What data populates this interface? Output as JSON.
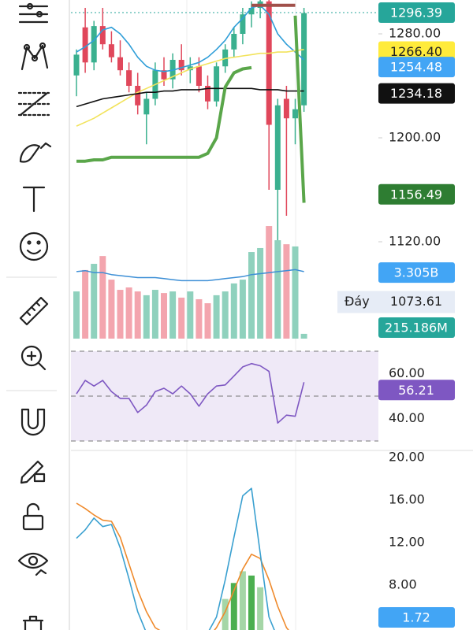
{
  "chart_data": [
    {
      "type": "candlestick",
      "ylim": [
        1045.45,
        1306.06
      ],
      "yticks": [
        {
          "value": 1280,
          "label": "1280.00"
        },
        {
          "value": 1200,
          "label": "1200.00"
        },
        {
          "value": 1120,
          "label": "1120.00"
        }
      ],
      "candles": [
        [
          1248,
          1268,
          1232,
          1264
        ],
        [
          1285,
          1300,
          1250,
          1258
        ],
        [
          1258,
          1290,
          1252,
          1286
        ],
        [
          1286,
          1300,
          1268,
          1272
        ],
        [
          1272,
          1282,
          1258,
          1262
        ],
        [
          1262,
          1275,
          1248,
          1252
        ],
        [
          1252,
          1258,
          1235,
          1240
        ],
        [
          1240,
          1250,
          1218,
          1225
        ],
        [
          1218,
          1235,
          1195,
          1230
        ],
        [
          1230,
          1258,
          1225,
          1252
        ],
        [
          1252,
          1262,
          1240,
          1245
        ],
        [
          1245,
          1265,
          1238,
          1260
        ],
        [
          1260,
          1272,
          1248,
          1252
        ],
        [
          1252,
          1262,
          1242,
          1255
        ],
        [
          1255,
          1262,
          1235,
          1240
        ],
        [
          1240,
          1248,
          1222,
          1228
        ],
        [
          1228,
          1258,
          1224,
          1255
        ],
        [
          1255,
          1272,
          1250,
          1268
        ],
        [
          1268,
          1285,
          1262,
          1280
        ],
        [
          1280,
          1300,
          1272,
          1295
        ],
        [
          1295,
          1305,
          1285,
          1300
        ],
        [
          1300,
          1310,
          1292,
          1305
        ],
        [
          1305,
          1310,
          1160,
          1210
        ],
        [
          1160,
          1230,
          1075,
          1225
        ],
        [
          1230,
          1240,
          1140,
          1215
        ],
        [
          1215,
          1230,
          1195,
          1222
        ],
        [
          1225,
          1300,
          1220,
          1296
        ]
      ],
      "up_color": "#3ab08f",
      "down_color": "#e0475b",
      "series": [
        {
          "color": "#2f9ed8",
          "values": [
            1266,
            1270,
            1275,
            1283,
            1285,
            1280,
            1272,
            1262,
            1255,
            1252,
            1251,
            1252,
            1254,
            1256,
            1258,
            1262,
            1268,
            1275,
            1285,
            1292,
            1300,
            1302,
            1295,
            1280,
            1272,
            1266,
            1260
          ]
        },
        {
          "color": "#f2e35c",
          "values": [
            1209,
            1212,
            1215,
            1219,
            1223,
            1227,
            1231,
            1235,
            1238,
            1241,
            1244,
            1247,
            1250,
            1253,
            1255,
            1257,
            1259,
            1261,
            1262,
            1263,
            1264,
            1265,
            1265,
            1266,
            1266,
            1267,
            1268
          ]
        },
        {
          "color": "#111111",
          "values": [
            1224,
            1226,
            1228,
            1230,
            1231,
            1232,
            1233,
            1234,
            1235,
            1235,
            1236,
            1236,
            1237,
            1237,
            1237,
            1238,
            1238,
            1238,
            1238,
            1238,
            1238,
            1237,
            1237,
            1237,
            1236,
            1236,
            1236
          ]
        },
        {
          "color": "#5aa64a",
          "values": [
            1182,
            1182,
            1183,
            1183,
            1185,
            1185,
            1185,
            1185,
            1185,
            1185,
            1185,
            1185,
            1185,
            1185,
            1185,
            1188,
            1200,
            1239,
            1250,
            1253,
            1254,
            null,
            null,
            null,
            null,
            1294,
            1150
          ]
        },
        {
          "color": "#a0504a",
          "values": [
            null,
            null,
            null,
            null,
            null,
            null,
            null,
            null,
            null,
            null,
            null,
            null,
            null,
            null,
            null,
            null,
            null,
            null,
            null,
            null,
            1302,
            1302,
            1302,
            1302,
            1302,
            1302,
            null
          ]
        }
      ],
      "last_line": {
        "value": 1296.39,
        "color": "#26a69a"
      },
      "badges": [
        {
          "value": 1296.39,
          "label": "1296.39",
          "color": "#26a69a"
        },
        {
          "value": 1266.4,
          "label": "1266.40",
          "color": "#ffeb3b"
        },
        {
          "value": 1254.48,
          "label": "1254.48",
          "color": "#42a5f5"
        },
        {
          "value": 1234.18,
          "label": "1234.18",
          "color": "#111111"
        },
        {
          "value": 1156.49,
          "label": "1156.49",
          "color": "#2e7d32"
        }
      ],
      "low_marker": {
        "tag": "Đáy",
        "value": 1073.61,
        "label": "1073.61"
      }
    },
    {
      "type": "volume",
      "ylim": [
        0,
        5.71
      ],
      "values": [
        2.36,
        3.43,
        3.74,
        4.13,
        2.95,
        2.44,
        2.56,
        2.36,
        2.17,
        2.44,
        2.28,
        2.36,
        2.05,
        2.36,
        1.97,
        1.77,
        2.17,
        2.36,
        2.76,
        2.95,
        4.33,
        4.53,
        5.63,
        4.92,
        4.72,
        4.61,
        0.24
      ],
      "ma": {
        "color": "#3d8fd6",
        "values": [
          3.35,
          3.4,
          3.3,
          3.3,
          3.2,
          3.15,
          3.1,
          3.05,
          3.05,
          3.05,
          3.0,
          2.95,
          2.9,
          2.9,
          2.9,
          2.9,
          2.95,
          3.0,
          3.05,
          3.1,
          3.2,
          3.25,
          3.3,
          3.35,
          3.4,
          3.45,
          3.35
        ]
      },
      "badges": [
        {
          "value": 3.305,
          "label": "3.305B",
          "color": "#42a5f5"
        },
        {
          "value": 0.215186,
          "label": "215.186M",
          "color": "#26a69a"
        }
      ]
    },
    {
      "type": "rsi",
      "ylim": [
        30,
        70
      ],
      "yticks": [
        {
          "value": 60,
          "label": "60.00"
        },
        {
          "value": 40,
          "label": "40.00"
        }
      ],
      "levels": [
        70,
        50,
        30
      ],
      "color": "#7e57c2",
      "values": [
        51,
        57,
        54.5,
        57,
        52,
        49,
        49,
        42.7,
        46,
        52,
        53.5,
        51,
        54.5,
        51,
        45.5,
        51,
        54.5,
        55,
        59,
        63,
        64.5,
        63.5,
        61,
        38,
        41.5,
        41,
        56.21
      ],
      "badge": {
        "value": 56.21,
        "label": "56.21",
        "color": "#7e57c2"
      }
    },
    {
      "type": "oscillator",
      "ylim": [
        3.78,
        20.44
      ],
      "yticks": [
        {
          "value": 20,
          "label": "20.00"
        },
        {
          "value": 16,
          "label": "16.00"
        },
        {
          "value": 12,
          "label": "12.00"
        },
        {
          "value": 8,
          "label": "8.00"
        }
      ],
      "series": [
        {
          "color": "#ef8a2c",
          "values": [
            15.7,
            15.2,
            14.6,
            14.1,
            14.0,
            12.5,
            10.0,
            7.5,
            5.5,
            4.0,
            3.5,
            3.2,
            3.0,
            3.0,
            3.0,
            3.0,
            4.0,
            5.5,
            7.5,
            9.5,
            10.9,
            10.5,
            8.5,
            6.0,
            4.0,
            3.0,
            3.0
          ]
        },
        {
          "color": "#3aa0d0",
          "values": [
            12.4,
            13.2,
            14.3,
            13.5,
            13.7,
            11.5,
            8.6,
            5.5,
            3.5,
            3.0,
            3.0,
            3.0,
            3.0,
            3.0,
            3.0,
            3.5,
            5.0,
            8.5,
            12.5,
            16.4,
            17.1,
            11.0,
            5.0,
            3.0,
            3.0,
            3.0,
            3.0
          ]
        }
      ],
      "histogram": {
        "values": [
          null,
          null,
          null,
          null,
          null,
          null,
          null,
          null,
          null,
          null,
          null,
          null,
          null,
          null,
          null,
          null,
          null,
          6.7,
          8.2,
          9.3,
          8.9,
          7.8,
          null,
          null,
          null,
          null,
          null
        ],
        "colors": [
          "#4caf50",
          "#a5d6a7"
        ]
      },
      "badge": {
        "value": 1.72,
        "label": "1.72",
        "color": "#42a5f5"
      }
    }
  ]
}
